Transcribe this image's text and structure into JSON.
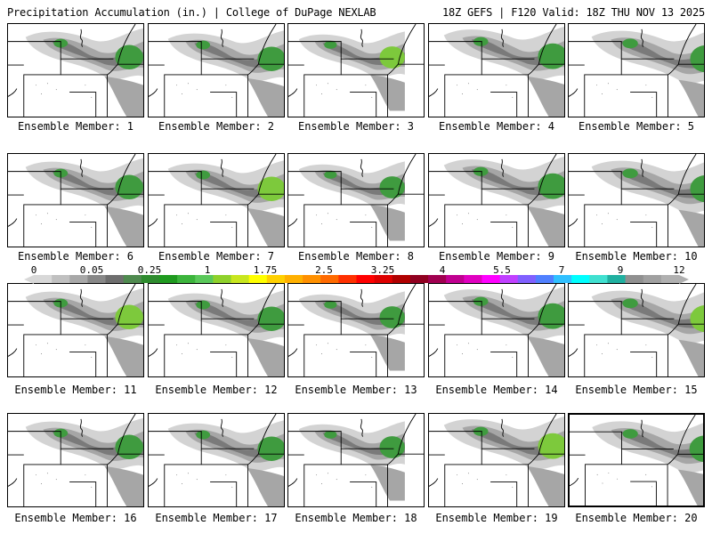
{
  "header": {
    "title": "Precipitation Accumulation (in.) | College of DuPage NEXLAB",
    "run_info": "18Z GEFS | F120 Valid: 18Z THU NOV 13 2025"
  },
  "panel_label_prefix": "Ensemble Member: ",
  "members": [
    1,
    2,
    3,
    4,
    5,
    6,
    7,
    8,
    9,
    10,
    11,
    12,
    13,
    14,
    15,
    16,
    17,
    18,
    19,
    20
  ],
  "selected_member": 20,
  "colorbar": {
    "labels": [
      "0",
      "0.05",
      "0.25",
      "1",
      "1.75",
      "2.5",
      "3.25",
      "4",
      "5.5",
      "7",
      "9",
      "12"
    ],
    "colors": [
      "#d8d8d8",
      "#c0c0c0",
      "#a8a8a8",
      "#888888",
      "#6e6e6e",
      "#4f8a4f",
      "#2e8b2e",
      "#1f9a1f",
      "#3cb43c",
      "#5ac85a",
      "#8fd12b",
      "#c8e61e",
      "#ffff00",
      "#ffd000",
      "#ffb000",
      "#ff9000",
      "#ff6a00",
      "#ff3000",
      "#ff0000",
      "#dd0000",
      "#b00000",
      "#900020",
      "#a00050",
      "#c00090",
      "#e000c0",
      "#ff00ff",
      "#c040ff",
      "#8060ff",
      "#5080ff",
      "#30c0ff",
      "#00ffff",
      "#40e0d0",
      "#20b0a0",
      "#909090",
      "#a0a0a0",
      "#b0b0b0"
    ]
  },
  "legend": {
    "gray_light": "#d3d3d3",
    "gray_mid": "#a6a6a6",
    "gray_dark": "#7a7a7a",
    "green": "#3f9b3f",
    "green_bright": "#7dc93c"
  }
}
